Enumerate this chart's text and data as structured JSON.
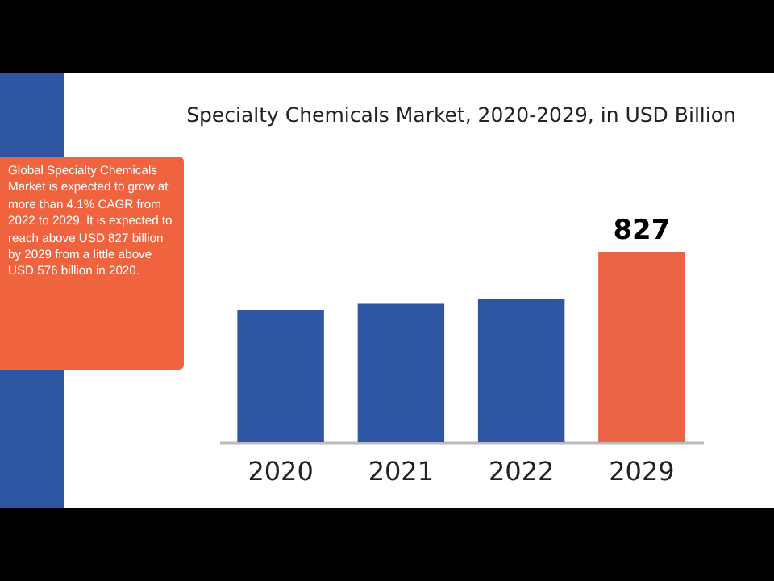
{
  "chart_data": {
    "type": "bar",
    "title": "Specialty Chemicals Market, 2020-2029, in USD Billion",
    "categories": [
      "2020",
      "2021",
      "2022",
      "2029"
    ],
    "values": [
      575,
      601,
      624,
      827
    ],
    "colors": [
      "#2e56a3",
      "#2e56a3",
      "#2e56a3",
      "#ea6445"
    ],
    "value_labels": [
      null,
      null,
      null,
      "827"
    ],
    "annotations": [
      "Global Specialty Chemicals Market is expected to grow at more than 4.1% CAGR from 2022 to 2029. It is expected to reach above USD 827 billion by 2029 from a little above USD 576 billion in 2020."
    ]
  }
}
